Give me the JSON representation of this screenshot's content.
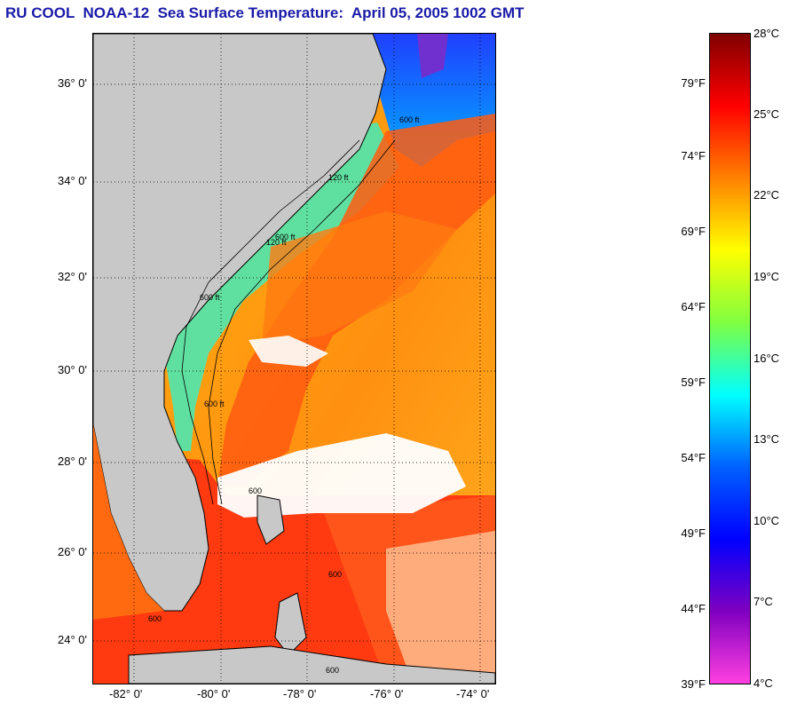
{
  "title": "RU COOL  NOAA-12  Sea Surface Temperature:  April 05, 2005 1002 GMT",
  "map": {
    "lat_labels": [
      "36° 0'",
      "34° 0'",
      "32° 0'",
      "30° 0'",
      "28° 0'",
      "26° 0'",
      "24° 0'"
    ],
    "lon_labels": [
      "-82° 0'",
      "-80° 0'",
      "-78° 0'",
      "-76° 0'",
      "-74° 0'"
    ],
    "contour_labels": [
      "120 ft",
      "600 ft",
      "600 ft",
      "120 ft",
      "600 ft",
      "600 ft",
      "600",
      "600",
      "600",
      "600"
    ],
    "colors": {
      "land": "#c8c8c8",
      "cloud": "#ffffff",
      "gulf_stream": "#ff3a10",
      "sargasso": "#ff8a10",
      "shelf": "#60e0a0",
      "cold_north": "#1030ff"
    }
  },
  "colorbar": {
    "fahrenheit_labels": [
      "79°F",
      "74°F",
      "69°F",
      "64°F",
      "59°F",
      "54°F",
      "49°F",
      "44°F",
      "39°F"
    ],
    "celsius_labels": [
      "28°C",
      "25°C",
      "22°C",
      "19°C",
      "16°C",
      "13°C",
      "10°C",
      "7°C",
      "4°C"
    ],
    "colors_top_to_bottom": [
      "#800000",
      "#ff0000",
      "#ff8000",
      "#ffff00",
      "#80ff40",
      "#00ffff",
      "#0060ff",
      "#0000ff",
      "#8000c0",
      "#ff40e0"
    ]
  }
}
